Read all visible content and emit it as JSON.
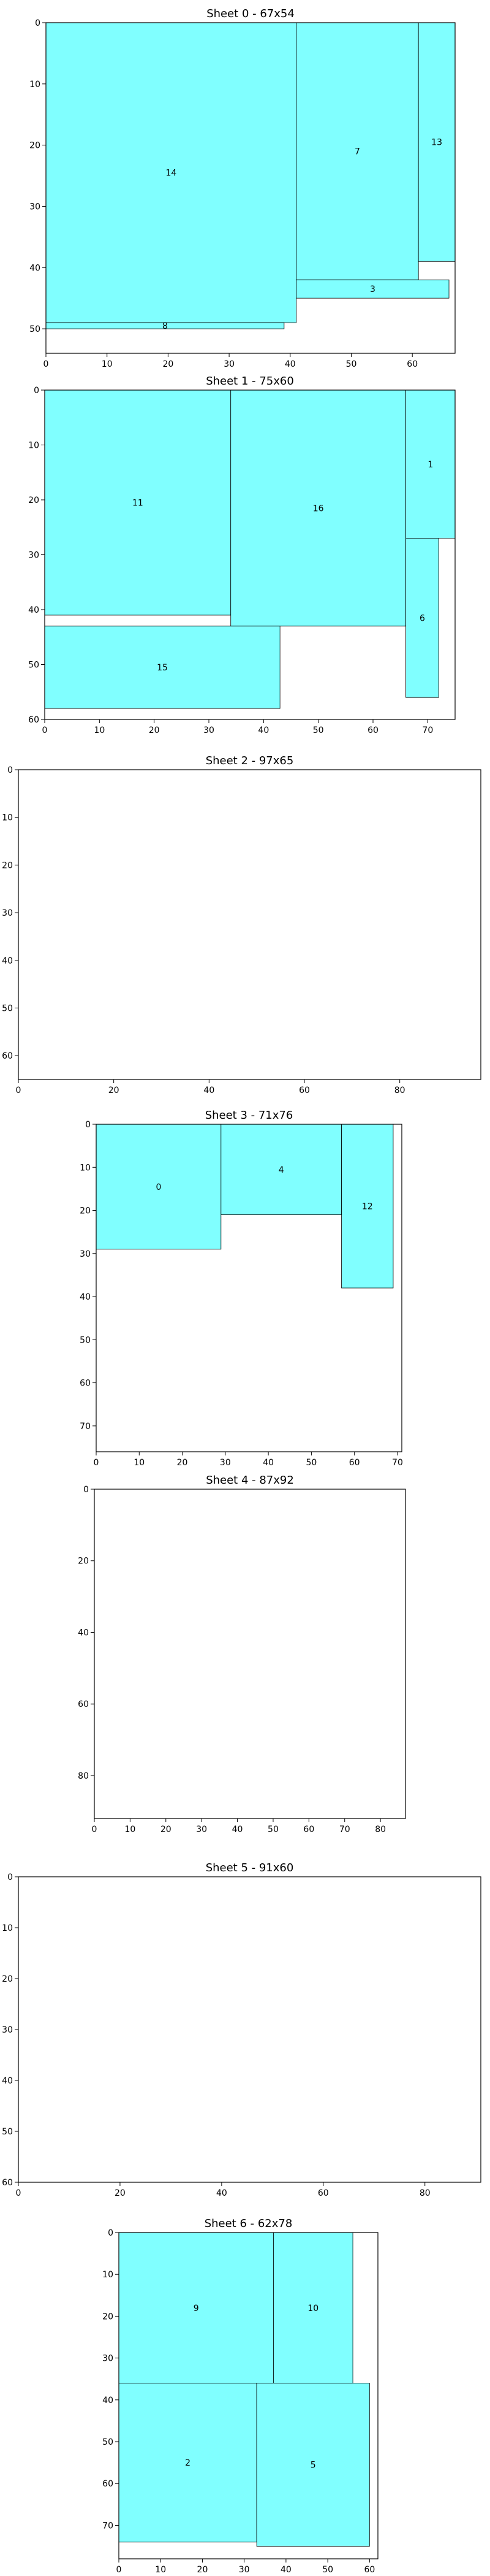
{
  "chart_data": [
    {
      "type": "rect-packing",
      "title": "Sheet 0 - 67x54",
      "sheet": {
        "width": 67,
        "height": 54
      },
      "xticks": [
        0,
        10,
        20,
        30,
        40,
        50,
        60
      ],
      "yticks": [
        0,
        10,
        20,
        30,
        40,
        50
      ],
      "pieces": [
        {
          "id": "14",
          "x": 0,
          "y": 0,
          "w": 41,
          "h": 49
        },
        {
          "id": "8",
          "x": 0,
          "y": 49,
          "w": 39,
          "h": 1
        },
        {
          "id": "7",
          "x": 41,
          "y": 0,
          "w": 20,
          "h": 42
        },
        {
          "id": "13",
          "x": 61,
          "y": 0,
          "w": 6,
          "h": 39
        },
        {
          "id": "3",
          "x": 41,
          "y": 42,
          "w": 25,
          "h": 3
        }
      ]
    },
    {
      "type": "rect-packing",
      "title": "Sheet 1 - 75x60",
      "sheet": {
        "width": 75,
        "height": 60
      },
      "xticks": [
        0,
        10,
        20,
        30,
        40,
        50,
        60,
        70
      ],
      "yticks": [
        0,
        10,
        20,
        30,
        40,
        50,
        60
      ],
      "pieces": [
        {
          "id": "11",
          "x": 0,
          "y": 0,
          "w": 34,
          "h": 41
        },
        {
          "id": "16",
          "x": 34,
          "y": 0,
          "w": 32,
          "h": 43
        },
        {
          "id": "1",
          "x": 66,
          "y": 0,
          "w": 9,
          "h": 27
        },
        {
          "id": "6",
          "x": 66,
          "y": 27,
          "w": 6,
          "h": 29
        },
        {
          "id": "15",
          "x": 0,
          "y": 43,
          "w": 43,
          "h": 15
        }
      ]
    },
    {
      "type": "rect-packing",
      "title": "Sheet 2 - 97x65",
      "sheet": {
        "width": 97,
        "height": 65
      },
      "xticks": [
        0,
        20,
        40,
        60,
        80
      ],
      "yticks": [
        0,
        10,
        20,
        30,
        40,
        50,
        60
      ],
      "pieces": []
    },
    {
      "type": "rect-packing",
      "title": "Sheet 3 - 71x76",
      "sheet": {
        "width": 71,
        "height": 76
      },
      "xticks": [
        0,
        10,
        20,
        30,
        40,
        50,
        60,
        70
      ],
      "yticks": [
        0,
        10,
        20,
        30,
        40,
        50,
        60,
        70
      ],
      "pieces": [
        {
          "id": "0",
          "x": 0,
          "y": 0,
          "w": 29,
          "h": 29
        },
        {
          "id": "4",
          "x": 29,
          "y": 0,
          "w": 28,
          "h": 21
        },
        {
          "id": "12",
          "x": 57,
          "y": 0,
          "w": 12,
          "h": 38
        }
      ]
    },
    {
      "type": "rect-packing",
      "title": "Sheet 4 - 87x92",
      "sheet": {
        "width": 87,
        "height": 92
      },
      "xticks": [
        0,
        10,
        20,
        30,
        40,
        50,
        60,
        70,
        80
      ],
      "yticks": [
        0,
        20,
        40,
        60,
        80
      ],
      "pieces": []
    },
    {
      "type": "rect-packing",
      "title": "Sheet 5 - 91x60",
      "sheet": {
        "width": 91,
        "height": 60
      },
      "xticks": [
        0,
        20,
        40,
        60,
        80
      ],
      "yticks": [
        0,
        10,
        20,
        30,
        40,
        50,
        60
      ],
      "pieces": []
    },
    {
      "type": "rect-packing",
      "title": "Sheet 6 - 62x78",
      "sheet": {
        "width": 62,
        "height": 78
      },
      "xticks": [
        0,
        10,
        20,
        30,
        40,
        50,
        60
      ],
      "yticks": [
        0,
        10,
        20,
        30,
        40,
        50,
        60,
        70
      ],
      "pieces": [
        {
          "id": "9",
          "x": 0,
          "y": 0,
          "w": 37,
          "h": 36
        },
        {
          "id": "10",
          "x": 37,
          "y": 0,
          "w": 19,
          "h": 36
        },
        {
          "id": "2",
          "x": 0,
          "y": 36,
          "w": 33,
          "h": 38
        },
        {
          "id": "5",
          "x": 33,
          "y": 36,
          "w": 27,
          "h": 39
        }
      ]
    }
  ],
  "colors": {
    "piece_fill": "#80ffff",
    "frame": "#000000",
    "background": "#ffffff"
  }
}
